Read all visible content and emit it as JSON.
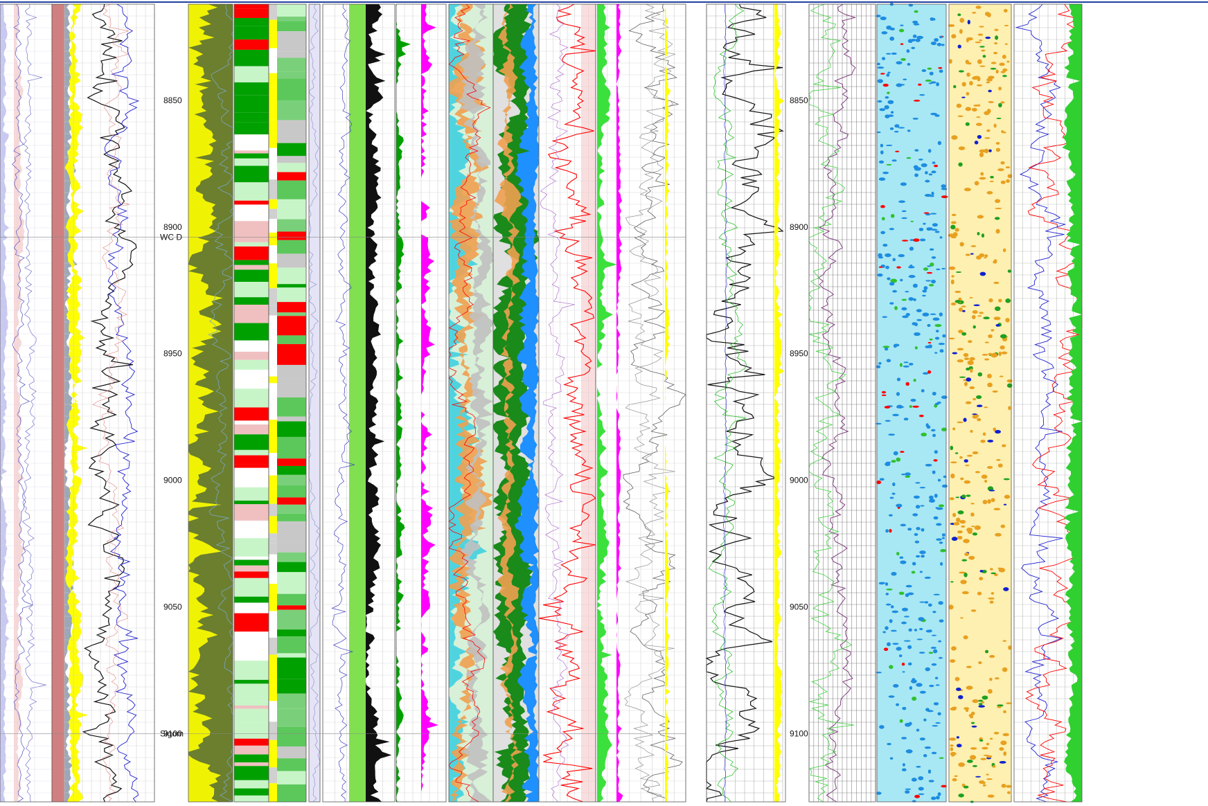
{
  "chart_data": {
    "type": "line",
    "depth_axis": {
      "range": [
        8812,
        9127
      ],
      "labels": [
        8850,
        8900,
        8950,
        9000,
        9050,
        9100
      ]
    },
    "markers": [
      {
        "label": "WC D",
        "depth": 8904
      },
      {
        "label": "Sigom",
        "depth": 9100
      }
    ],
    "marker_color": "#1a1a1a",
    "palette": {
      "shale": "#6b7f2e",
      "sand": "#ffff00",
      "calcite": "#00a000",
      "light_green": "#c8f5c8",
      "red": "#ff0000",
      "cyan": "#40d0e0",
      "blue": "#1e90ff",
      "magenta": "#ff00ff",
      "orange": "#f0a050",
      "pink": "#d08080",
      "lavender": "#c8c8f0",
      "black": "#111111"
    }
  }
}
